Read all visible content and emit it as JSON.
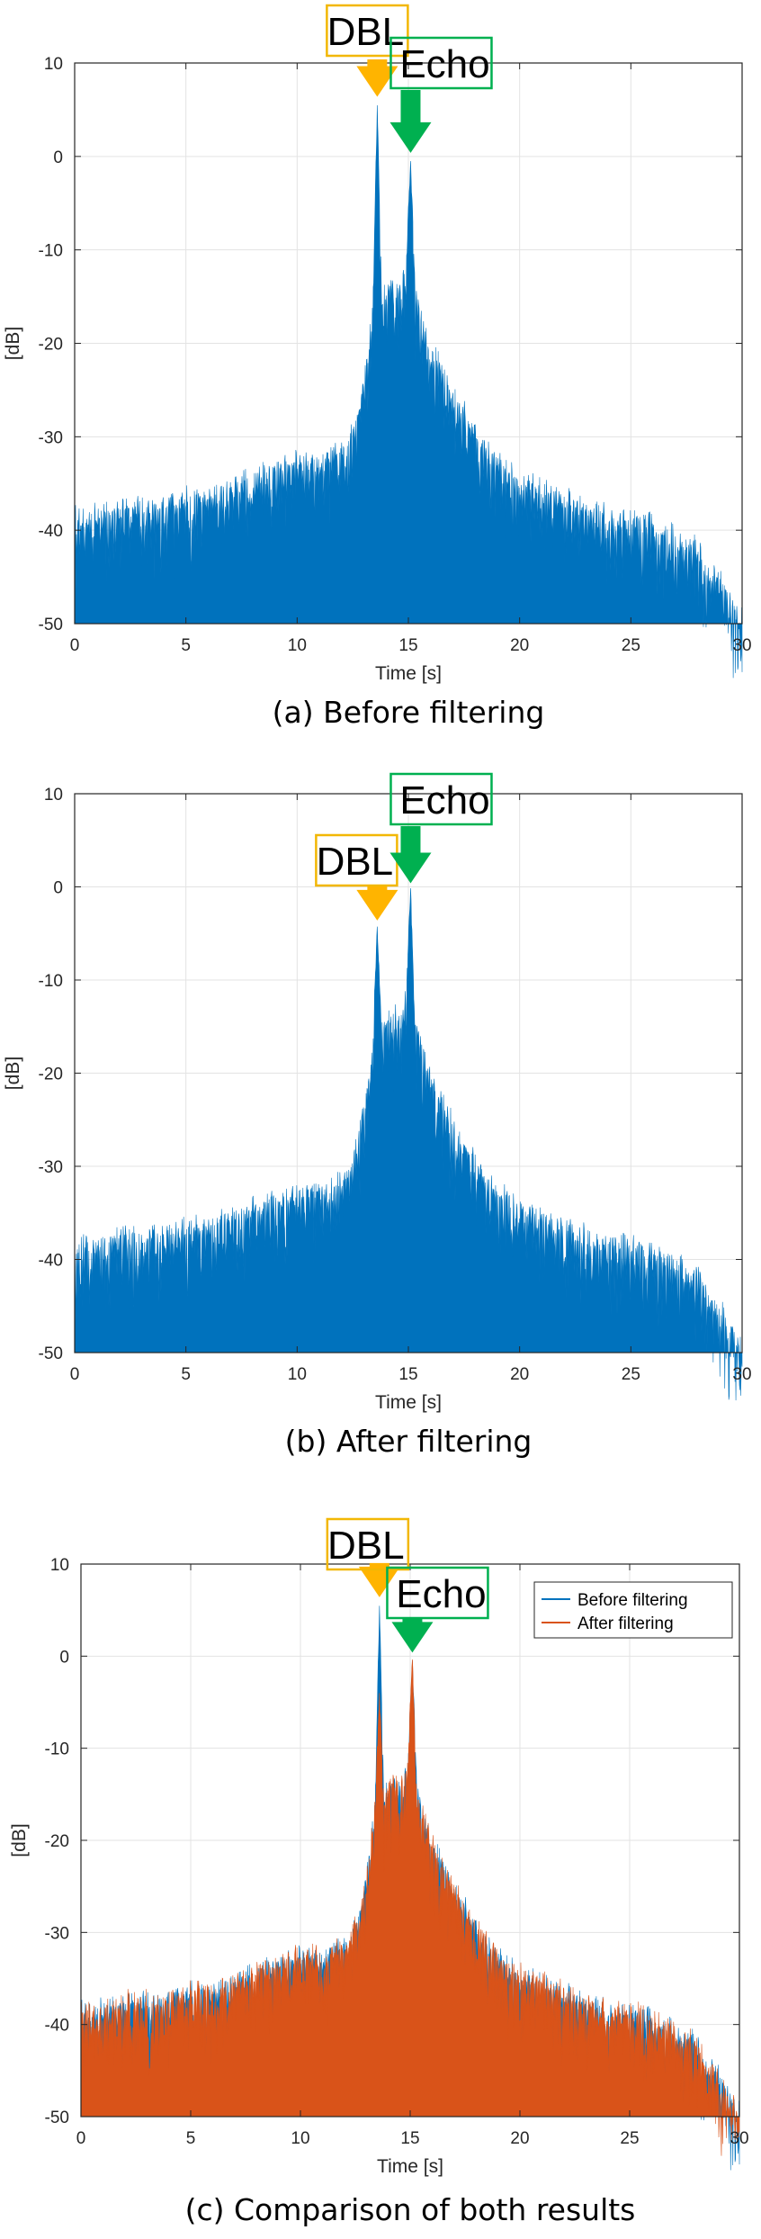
{
  "colors": {
    "before": "#0072BD",
    "after": "#D95319",
    "dbl_box": "#F2B705",
    "dbl_arrow": "#FFB400",
    "echo_box": "#00B050",
    "echo_arrow": "#00B050",
    "grid": "#E3E3E3",
    "axis": "#262626"
  },
  "chart_data": [
    {
      "type": "area",
      "caption": "(a) Before filtering",
      "xlabel": "Time [s]",
      "ylabel": "[dB]",
      "xlim": [
        0,
        30
      ],
      "ylim": [
        -50,
        10
      ],
      "xticks": [
        0,
        5,
        10,
        15,
        20,
        25,
        30
      ],
      "yticks": [
        10,
        0,
        -10,
        -20,
        -30,
        -40,
        -50
      ],
      "grid": true,
      "envelope": {
        "x": [
          0,
          1,
          2,
          3,
          4,
          5,
          6,
          7,
          8,
          9,
          10,
          11,
          12,
          12.5,
          13,
          13.4,
          13.6,
          13.8,
          14.2,
          14.6,
          14.9,
          15.1,
          15.3,
          15.6,
          16,
          17,
          18,
          19,
          20,
          21,
          22,
          23,
          24,
          25,
          26,
          27,
          28,
          28.5,
          29,
          29.5,
          30
        ],
        "y": [
          -37,
          -37,
          -36,
          -36,
          -36,
          -35,
          -35,
          -34,
          -33,
          -32,
          -31,
          -31,
          -30,
          -28,
          -23,
          -15,
          6,
          -14,
          -12,
          -13,
          -10,
          0,
          -13,
          -16,
          -19,
          -24,
          -28,
          -31,
          -33,
          -34,
          -35,
          -36,
          -37,
          -37,
          -38,
          -39,
          -40,
          -43,
          -44,
          -46,
          -48
        ]
      },
      "annotations": [
        {
          "label": "DBL",
          "x": 13.6,
          "y": 6
        },
        {
          "label": "Echo",
          "x": 15.1,
          "y": 0
        }
      ]
    },
    {
      "type": "area",
      "caption": "(b) After filtering",
      "xlabel": "Time [s]",
      "ylabel": "[dB]",
      "xlim": [
        0,
        30
      ],
      "ylim": [
        -50,
        10
      ],
      "xticks": [
        0,
        5,
        10,
        15,
        20,
        25,
        30
      ],
      "yticks": [
        10,
        0,
        -10,
        -20,
        -30,
        -40,
        -50
      ],
      "grid": true,
      "envelope": {
        "x": [
          0,
          1,
          2,
          3,
          4,
          5,
          6,
          7,
          8,
          9,
          10,
          11,
          12,
          12.5,
          13,
          13.4,
          13.6,
          13.8,
          14.2,
          14.6,
          14.9,
          15.1,
          15.3,
          15.6,
          16,
          17,
          18,
          19,
          20,
          21,
          22,
          23,
          24,
          25,
          26,
          27,
          28,
          28.5,
          29,
          29.5,
          30
        ],
        "y": [
          -37,
          -37,
          -36,
          -36,
          -36,
          -35,
          -35,
          -34,
          -33,
          -32,
          -31,
          -31,
          -30,
          -28,
          -23,
          -15,
          -4,
          -14,
          -12,
          -13,
          -10,
          0,
          -13,
          -16,
          -19,
          -24,
          -28,
          -31,
          -33,
          -34,
          -35,
          -36,
          -37,
          -37,
          -38,
          -39,
          -40,
          -43,
          -44,
          -46,
          -48
        ]
      },
      "annotations": [
        {
          "label": "DBL",
          "x": 13.6,
          "y": -4
        },
        {
          "label": "Echo",
          "x": 15.1,
          "y": 0
        }
      ]
    },
    {
      "type": "area",
      "caption": "(c) Comparison of both results",
      "xlabel": "Time [s]",
      "ylabel": "[dB]",
      "xlim": [
        0,
        30
      ],
      "ylim": [
        -50,
        10
      ],
      "xticks": [
        0,
        5,
        10,
        15,
        20,
        25,
        30
      ],
      "yticks": [
        10,
        0,
        -10,
        -20,
        -30,
        -40,
        -50
      ],
      "grid": true,
      "legend": "top-right",
      "series": [
        {
          "name": "Before filtering",
          "x": [
            0,
            1,
            2,
            3,
            4,
            5,
            6,
            7,
            8,
            9,
            10,
            11,
            12,
            12.5,
            13,
            13.4,
            13.6,
            13.8,
            14.2,
            14.6,
            14.9,
            15.1,
            15.3,
            15.6,
            16,
            17,
            18,
            19,
            20,
            21,
            22,
            23,
            24,
            25,
            26,
            27,
            28,
            28.5,
            29,
            29.5,
            30
          ],
          "y": [
            -37,
            -37,
            -36,
            -36,
            -36,
            -35,
            -35,
            -34,
            -33,
            -32,
            -31,
            -31,
            -30,
            -28,
            -23,
            -15,
            6,
            -14,
            -12,
            -13,
            -10,
            0,
            -13,
            -16,
            -19,
            -24,
            -28,
            -31,
            -33,
            -34,
            -35,
            -36,
            -37,
            -37,
            -38,
            -39,
            -40,
            -43,
            -44,
            -46,
            -48
          ]
        },
        {
          "name": "After filtering",
          "x": [
            0,
            1,
            2,
            3,
            4,
            5,
            6,
            7,
            8,
            9,
            10,
            11,
            12,
            12.5,
            13,
            13.4,
            13.6,
            13.8,
            14.2,
            14.6,
            14.9,
            15.1,
            15.3,
            15.6,
            16,
            17,
            18,
            19,
            20,
            21,
            22,
            23,
            24,
            25,
            26,
            27,
            28,
            28.5,
            29,
            29.5,
            30
          ],
          "y": [
            -37,
            -37,
            -36,
            -36,
            -36,
            -35,
            -35,
            -34,
            -33,
            -32,
            -31,
            -31,
            -30,
            -28,
            -23,
            -15,
            -4,
            -14,
            -12,
            -13,
            -10,
            0,
            -13,
            -16,
            -19,
            -24,
            -28,
            -31,
            -33,
            -34,
            -35,
            -36,
            -37,
            -37,
            -38,
            -39,
            -40,
            -43,
            -44,
            -46,
            -48
          ]
        }
      ],
      "annotations": [
        {
          "label": "DBL",
          "x": 13.6,
          "y": 6
        },
        {
          "label": "Echo",
          "x": 15.1,
          "y": 0
        }
      ]
    }
  ]
}
